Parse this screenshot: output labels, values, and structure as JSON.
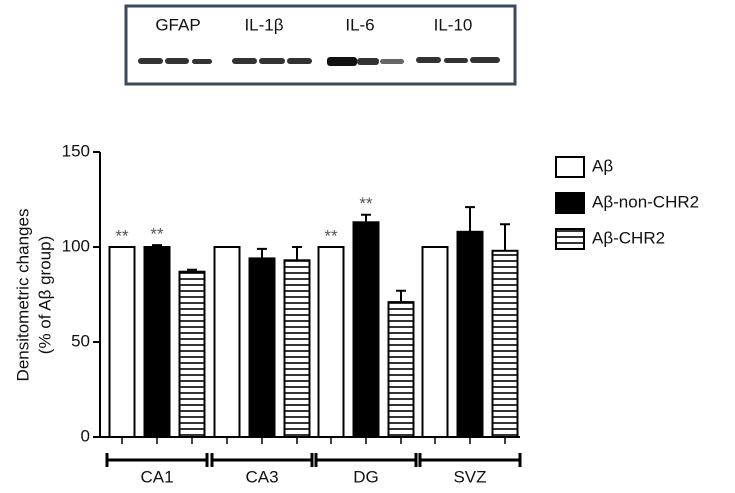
{
  "blot": {
    "labels": [
      "GFAP",
      "IL-1β",
      "IL-6",
      "IL-10"
    ]
  },
  "chart_data": {
    "type": "bar",
    "ylabel": [
      "Densitometric changes",
      "(% of Aβ group)"
    ],
    "categories": [
      "CA1",
      "CA3",
      "DG",
      "SVZ"
    ],
    "ylim": [
      0,
      150
    ],
    "yticks": [
      0,
      50,
      100,
      150
    ],
    "legend": "right",
    "series": [
      {
        "name": "Aβ",
        "color": "#ffffff",
        "values": [
          100,
          100,
          100,
          100
        ],
        "annotations": [
          "**",
          null,
          "**",
          null
        ]
      },
      {
        "name": "Aβ-non-CHR2",
        "color": "#000000",
        "values": [
          100,
          94,
          113,
          108
        ],
        "errors": [
          1,
          5,
          4,
          13
        ],
        "annotations": [
          "**",
          null,
          "**",
          null
        ]
      },
      {
        "name": "Aβ-CHR2",
        "color": "striped",
        "values": [
          87,
          93,
          71,
          98
        ],
        "errors": [
          1,
          7,
          6,
          14
        ]
      }
    ]
  }
}
